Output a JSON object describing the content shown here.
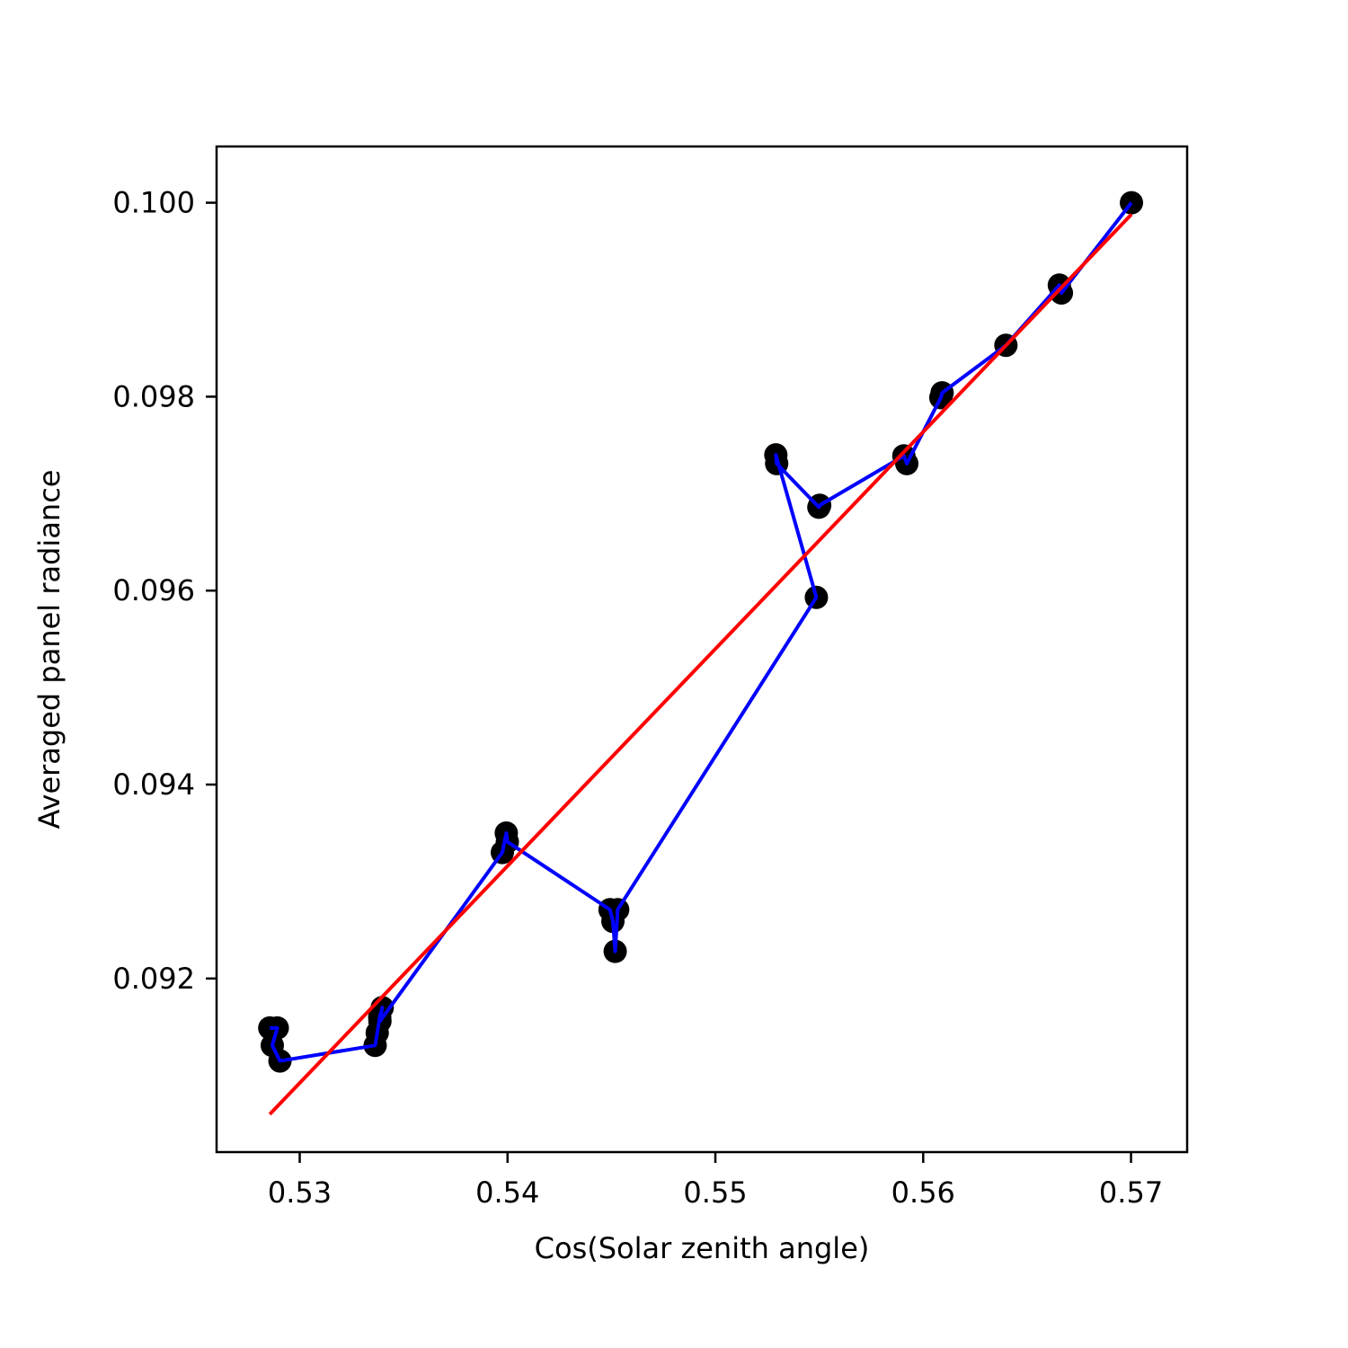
{
  "chart_data": {
    "type": "scatter",
    "title": "",
    "xlabel": "Cos(Solar zenith angle)",
    "ylabel": "Averaged panel radiance",
    "xlim": [
      0.526,
      0.5727
    ],
    "ylim": [
      0.09021,
      0.10058
    ],
    "x_ticks": [
      0.53,
      0.54,
      0.55,
      0.56,
      0.57
    ],
    "x_tick_labels": [
      "0.53",
      "0.54",
      "0.55",
      "0.56",
      "0.57"
    ],
    "y_ticks": [
      0.092,
      0.094,
      0.096,
      0.098,
      0.1
    ],
    "y_tick_labels": [
      "0.092",
      "0.094",
      "0.096",
      "0.098",
      "0.100"
    ],
    "grid": false,
    "series": [
      {
        "kind": "scatter",
        "color": "#000000",
        "x": [
          0.52856,
          0.52892,
          0.52868,
          0.52905,
          0.53363,
          0.53373,
          0.53385,
          0.53397,
          0.53386,
          0.53975,
          0.53994,
          0.53999,
          0.54493,
          0.54507,
          0.54518,
          0.5453,
          0.55486,
          0.55291,
          0.55295,
          0.55498,
          0.55502,
          0.55907,
          0.55921,
          0.56085,
          0.56091,
          0.56398,
          0.56655,
          0.56665,
          0.57002
        ],
        "y": [
          0.09149,
          0.09149,
          0.09131,
          0.09115,
          0.09131,
          0.09144,
          0.0916,
          0.0917,
          0.09156,
          0.0933,
          0.0935,
          0.09341,
          0.09271,
          0.09259,
          0.09228,
          0.09271,
          0.09593,
          0.0974,
          0.09731,
          0.09686,
          0.09688,
          0.09739,
          0.09731,
          0.09799,
          0.09804,
          0.09853,
          0.09915,
          0.09907,
          0.1
        ]
      },
      {
        "kind": "line",
        "color": "#0000ff",
        "x": [
          0.52856,
          0.52892,
          0.52868,
          0.52905,
          0.53363,
          0.53373,
          0.53385,
          0.53397,
          0.53386,
          0.53975,
          0.53994,
          0.53999,
          0.54493,
          0.54507,
          0.54518,
          0.5453,
          0.55486,
          0.55291,
          0.55295,
          0.55498,
          0.55502,
          0.55907,
          0.55921,
          0.56085,
          0.56091,
          0.56398,
          0.56655,
          0.56665,
          0.57002
        ],
        "y": [
          0.09149,
          0.09149,
          0.09131,
          0.09115,
          0.09131,
          0.09144,
          0.0916,
          0.0917,
          0.09156,
          0.0933,
          0.0935,
          0.09341,
          0.09271,
          0.09259,
          0.09228,
          0.09271,
          0.09593,
          0.0974,
          0.09731,
          0.09686,
          0.09688,
          0.09739,
          0.09731,
          0.09799,
          0.09804,
          0.09853,
          0.09915,
          0.09907,
          0.1
        ]
      },
      {
        "kind": "line",
        "color": "#ff0000",
        "x": [
          0.52856,
          0.57002
        ],
        "y": [
          0.0906,
          0.09988
        ]
      }
    ]
  }
}
